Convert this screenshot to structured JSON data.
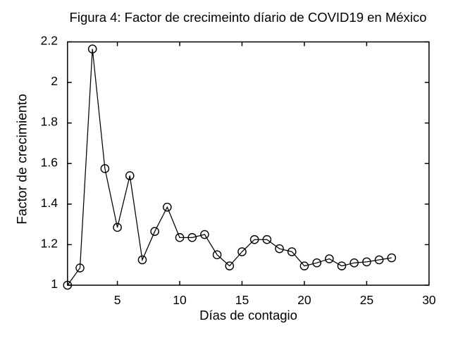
{
  "chart_data": {
    "type": "line",
    "title": "Figura 4: Factor de crecimeinto díario de COVID19 en México",
    "xlabel": "Días de contagio",
    "ylabel": "Factor de crecimiento",
    "x": [
      1,
      2,
      3,
      4,
      5,
      6,
      7,
      8,
      9,
      10,
      11,
      12,
      13,
      14,
      15,
      16,
      17,
      18,
      19,
      20,
      21,
      22,
      23,
      24,
      25,
      26,
      27
    ],
    "y": [
      1.0,
      1.085,
      2.165,
      1.575,
      1.285,
      1.54,
      1.125,
      1.265,
      1.385,
      1.235,
      1.235,
      1.25,
      1.15,
      1.095,
      1.165,
      1.225,
      1.225,
      1.18,
      1.165,
      1.095,
      1.11,
      1.13,
      1.095,
      1.11,
      1.115,
      1.125,
      1.135
    ],
    "xlim": [
      1,
      30
    ],
    "ylim": [
      1,
      2.2
    ],
    "xticks": {
      "values": [
        5,
        10,
        15,
        20,
        25,
        30
      ],
      "labels": [
        "5",
        "10",
        "15",
        "20",
        "25",
        "30"
      ]
    },
    "yticks": {
      "values": [
        1,
        1.2,
        1.4,
        1.6,
        1.8,
        2,
        2.2
      ],
      "labels": [
        "1",
        "1.2",
        "1.4",
        "1.6",
        "1.8",
        "2",
        "2.2"
      ]
    },
    "marker": "open-circle",
    "line_color": "#000000",
    "background": "#ffffff",
    "grid": false,
    "legend": null
  }
}
